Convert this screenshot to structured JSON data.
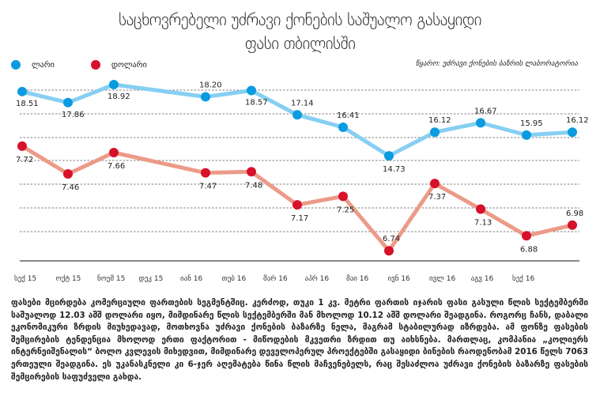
{
  "title_line1": "საცხოვრებელი უძრავი ქონების საშუალო გასაყიდი",
  "title_line2": "ფასი თბილისში",
  "source": "წყარო: უძრავი ქონების ბაზრის ლაბორატორია",
  "paragraph": "ფასები მცირდება კომერციული ფართების სეგმენტშიც. კერძოდ, თუკი 1 კვ. მეტრი ფართის იჯარის ფასი გასული წლის სექტემბერში საშუალოდ 12.03 აშშ დოლარი იყო, მიმდინარე წლის სექტემბერში მან მხოლოდ 10.12 აშშ დოლარი შეადგინა. როგორც ჩანს, დაბალი ეკონომიკური ზრდის მიუხედავად, მოთხოვნა უძრავი ქონების ბაზარზე ნელა, მაგრამ სტაბილურად იზრდება. ამ ფონზე ფასების შემცირების ტენდენცია მხოლოდ ერთი ფაქტორით - მიწოდების მკვეთრი ზრდით თუ აიხსნება. მართლაც, კომპანია „კოლიერს ინტერნეიშენალის“ ბოლო კვლევის მიხედვით, მიმდინარე დეველოპერულ პროექტებში გასაყიდი ბინების რაოდენობამ 2016 წელს 7063 ერთეული შეადგინა. ეს უკანასკნელი კი 6-ჯერ აღემატება წინა წლის მაჩვენებელს, რაც შესაძლოა უძრავი ქონების ბაზარზე ფასების შემცირების საფუძველი გახდა.",
  "chart_data": {
    "type": "line",
    "title": "საცხოვრებელი უძრავი ქონების საშუალო გასაყიდი ფასი თბილისში",
    "categories": [
      "სექ 15",
      "ოქტ 15",
      "ნოემ 15",
      "დეკ 15",
      "იან 16",
      "თებ 16",
      "მარ 16",
      "აპრ 16",
      "მაი 16",
      "ივნ 16",
      "ივლ 16",
      "აგვ 16",
      "სექ 16"
    ],
    "grid": true,
    "legend_position": "top-left",
    "series": [
      {
        "name": "ლარი",
        "color": "#0a9be0",
        "line_color": "#86cff2",
        "values": [
          18.51,
          17.86,
          18.92,
          null,
          18.2,
          18.57,
          17.14,
          16.41,
          14.73,
          16.12,
          16.67,
          15.95,
          16.12
        ]
      },
      {
        "name": "დოლარი",
        "color": "#d7112a",
        "line_color": "#ec9a88",
        "values": [
          7.72,
          7.46,
          7.66,
          null,
          7.47,
          7.48,
          7.17,
          7.25,
          6.74,
          7.37,
          7.13,
          6.88,
          6.98
        ]
      }
    ]
  }
}
